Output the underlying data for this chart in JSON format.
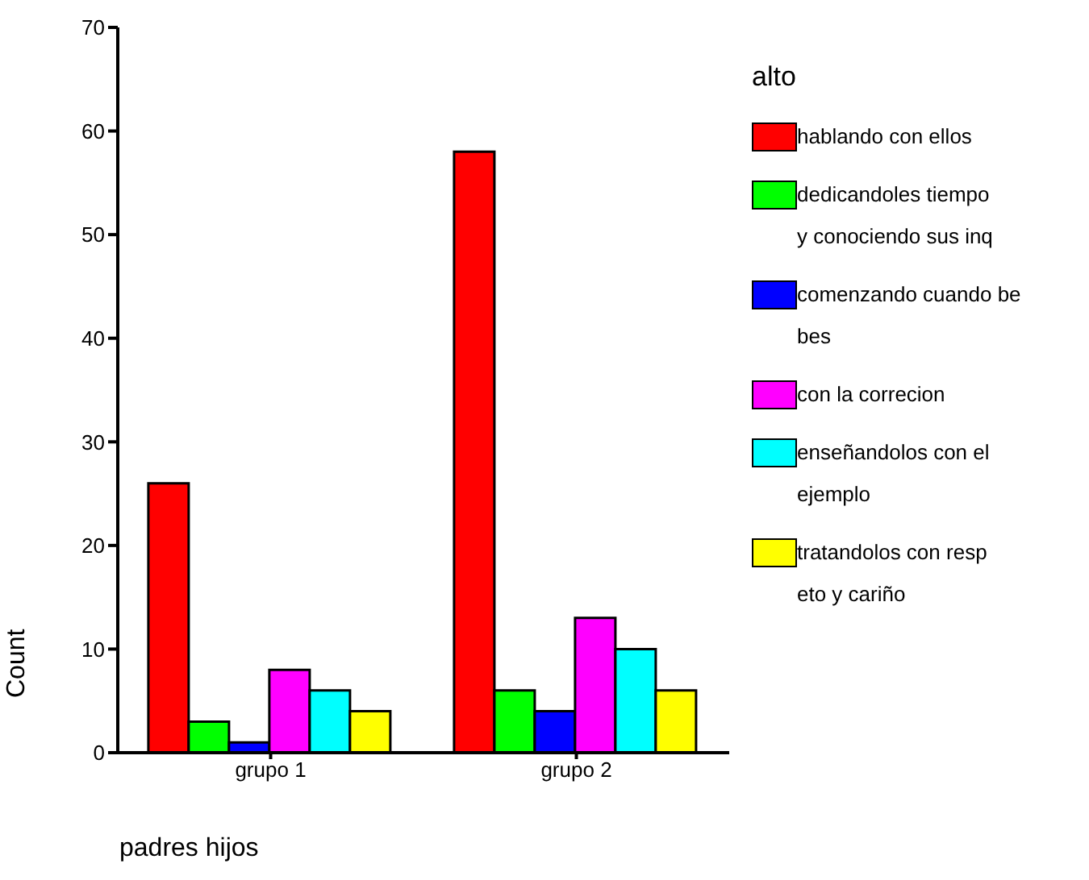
{
  "chart_data": {
    "type": "bar",
    "xlabel": "padres hijos",
    "ylabel": "Count",
    "legend_title": "alto",
    "categories": [
      "grupo 1",
      "grupo 2"
    ],
    "series": [
      {
        "name": "hablando con ellos",
        "color": "#ff0000",
        "values": [
          26,
          58
        ]
      },
      {
        "name": "dedicandoles tiempo y conociendo sus inq",
        "color": "#00ff00",
        "values": [
          3,
          6
        ]
      },
      {
        "name": "comenzando cuando bebes",
        "color": "#0000ff",
        "values": [
          1,
          4
        ]
      },
      {
        "name": "con la correcion",
        "color": "#ff00ff",
        "values": [
          8,
          13
        ]
      },
      {
        "name": "enseñandolos con el ejemplo",
        "color": "#00ffff",
        "values": [
          6,
          10
        ]
      },
      {
        "name": "tratandolos con respeto y cariño",
        "color": "#ffff00",
        "values": [
          4,
          6
        ]
      }
    ],
    "ylim": [
      0,
      70
    ],
    "yticks": [
      0,
      10,
      20,
      30,
      40,
      50,
      60,
      70
    ],
    "grid": false,
    "legend": "right"
  }
}
